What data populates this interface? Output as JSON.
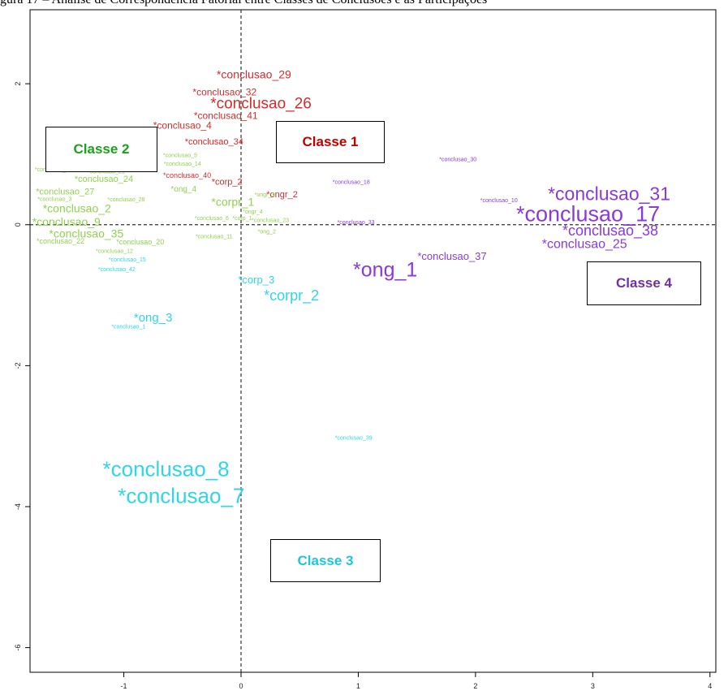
{
  "caption_fragment": "gura 17 – Análise de Correspondência Fatorial entre Classes de Conclusões e as Participações",
  "chart_data": {
    "type": "scatter",
    "title": "",
    "xlabel": "",
    "ylabel": "",
    "xlim": [
      -1.8,
      4.05
    ],
    "ylim": [
      -6.35,
      3.05
    ],
    "x_ticks": [
      -1,
      0,
      1,
      2,
      3,
      4
    ],
    "x_tick_labels": [
      "-1",
      "0",
      "1",
      "2",
      "3",
      "4"
    ],
    "y_ticks": [
      -6,
      -4,
      -2,
      0,
      2
    ],
    "y_tick_labels": [
      "-6",
      "-4",
      "-2",
      "0",
      "2"
    ],
    "reference_lines": {
      "x": 0,
      "y": 0,
      "style": "dashed"
    },
    "grid": false,
    "classes": [
      {
        "label": "Classe 1",
        "color": "#d62b2b"
      },
      {
        "label": "Classe 2",
        "color": "#8fd14f"
      },
      {
        "label": "Classe 3",
        "color": "#2fd6e8"
      },
      {
        "label": "Classe 4",
        "color": "#8a3ad6"
      }
    ],
    "points": [
      {
        "label": "*conclusao_29",
        "x": 0.11,
        "y": 2.12,
        "cls": 1,
        "size": 14
      },
      {
        "label": "*conclusao_32",
        "x": -0.14,
        "y": 1.87,
        "cls": 1,
        "size": 12
      },
      {
        "label": "*conclusao_26",
        "x": 0.17,
        "y": 1.71,
        "cls": 1,
        "size": 19
      },
      {
        "label": "*conclusao_41",
        "x": -0.13,
        "y": 1.54,
        "cls": 1,
        "size": 12
      },
      {
        "label": "*conclusao_4",
        "x": -0.5,
        "y": 1.4,
        "cls": 1,
        "size": 12
      },
      {
        "label": "*conclusao_34",
        "x": -0.23,
        "y": 1.17,
        "cls": 1,
        "size": 11
      },
      {
        "label": "*conclusao_40",
        "x": -0.46,
        "y": 0.69,
        "cls": 1,
        "size": 9
      },
      {
        "label": "*corp_2",
        "x": -0.12,
        "y": 0.6,
        "cls": 1,
        "size": 11
      },
      {
        "label": "*ongr_2",
        "x": 0.35,
        "y": 0.42,
        "cls": 1,
        "size": 11
      },
      {
        "label": "*conclusao_5",
        "x": -0.52,
        "y": 0.98,
        "cls": 2,
        "size": 7
      },
      {
        "label": "*conclusao_14",
        "x": -0.5,
        "y": 0.86,
        "cls": 2,
        "size": 7
      },
      {
        "label": "*conclusao_36",
        "x": -1.6,
        "y": 0.78,
        "cls": 2,
        "size": 7
      },
      {
        "label": "*conclusao_21",
        "x": -1.15,
        "y": 0.75,
        "cls": 2,
        "size": 7
      },
      {
        "label": "*conclusao_24",
        "x": -1.17,
        "y": 0.64,
        "cls": 2,
        "size": 11
      },
      {
        "label": "*conclusao_27",
        "x": -1.5,
        "y": 0.46,
        "cls": 2,
        "size": 11
      },
      {
        "label": "*ong_4",
        "x": -0.49,
        "y": 0.5,
        "cls": 2,
        "size": 10
      },
      {
        "label": "*conclusao_3",
        "x": -1.59,
        "y": 0.36,
        "cls": 2,
        "size": 7
      },
      {
        "label": "*conclusao_28",
        "x": -0.98,
        "y": 0.35,
        "cls": 2,
        "size": 7
      },
      {
        "label": "*corpr_1",
        "x": -0.07,
        "y": 0.31,
        "cls": 2,
        "size": 14
      },
      {
        "label": "*ongr_3",
        "x": 0.2,
        "y": 0.42,
        "cls": 2,
        "size": 7
      },
      {
        "label": "*ongr_4",
        "x": 0.1,
        "y": 0.18,
        "cls": 2,
        "size": 7
      },
      {
        "label": "*conclusao_2",
        "x": -1.4,
        "y": 0.22,
        "cls": 2,
        "size": 14
      },
      {
        "label": "*conclusao_6",
        "x": -0.25,
        "y": 0.09,
        "cls": 2,
        "size": 7
      },
      {
        "label": "*corp_1",
        "x": 0.01,
        "y": 0.09,
        "cls": 2,
        "size": 7
      },
      {
        "label": "*conclusao_23",
        "x": 0.25,
        "y": 0.06,
        "cls": 2,
        "size": 7
      },
      {
        "label": "*conclusao_9",
        "x": -1.49,
        "y": 0.03,
        "cls": 2,
        "size": 14
      },
      {
        "label": "*ong_2",
        "x": 0.22,
        "y": -0.1,
        "cls": 2,
        "size": 7
      },
      {
        "label": "*conclusao_11",
        "x": -0.23,
        "y": -0.17,
        "cls": 2,
        "size": 7
      },
      {
        "label": "*conclusao_35",
        "x": -1.32,
        "y": -0.14,
        "cls": 2,
        "size": 14
      },
      {
        "label": "*conclusao_22",
        "x": -1.54,
        "y": -0.24,
        "cls": 2,
        "size": 9
      },
      {
        "label": "*conclusao_20",
        "x": -0.86,
        "y": -0.25,
        "cls": 2,
        "size": 9
      },
      {
        "label": "*conclusao_12",
        "x": -1.08,
        "y": -0.38,
        "cls": 2,
        "size": 7
      },
      {
        "label": "*conclusao_15",
        "x": -0.97,
        "y": -0.5,
        "cls": 3,
        "size": 7
      },
      {
        "label": "*conclusao_42",
        "x": -1.06,
        "y": -0.64,
        "cls": 3,
        "size": 7
      },
      {
        "label": "*corp_3",
        "x": 0.13,
        "y": -0.79,
        "cls": 3,
        "size": 13
      },
      {
        "label": "*corpr_2",
        "x": 0.43,
        "y": -1.02,
        "cls": 3,
        "size": 18
      },
      {
        "label": "*ong_3",
        "x": -0.75,
        "y": -1.33,
        "cls": 3,
        "size": 15
      },
      {
        "label": "*conclusao_1",
        "x": -0.96,
        "y": -1.45,
        "cls": 3,
        "size": 7
      },
      {
        "label": "*conclusao_39",
        "x": 0.96,
        "y": -3.03,
        "cls": 3,
        "size": 7
      },
      {
        "label": "*conclusao_8",
        "x": -0.64,
        "y": -3.49,
        "cls": 3,
        "size": 26
      },
      {
        "label": "*conclusao_7",
        "x": -0.51,
        "y": -3.87,
        "cls": 3,
        "size": 26
      },
      {
        "label": "*conclusao_30",
        "x": 1.85,
        "y": 0.92,
        "cls": 4,
        "size": 7
      },
      {
        "label": "*conclusao_18",
        "x": 0.94,
        "y": 0.6,
        "cls": 4,
        "size": 7
      },
      {
        "label": "*conclusao_10",
        "x": 2.2,
        "y": 0.34,
        "cls": 4,
        "size": 7
      },
      {
        "label": "*conclusao_31",
        "x": 3.14,
        "y": 0.42,
        "cls": 4,
        "size": 23
      },
      {
        "label": "*conclusao_17",
        "x": 2.96,
        "y": 0.13,
        "cls": 4,
        "size": 27
      },
      {
        "label": "*conclusao_33",
        "x": 0.98,
        "y": 0.03,
        "cls": 4,
        "size": 7
      },
      {
        "label": "*conclusao_38",
        "x": 3.15,
        "y": -0.1,
        "cls": 4,
        "size": 18
      },
      {
        "label": "*conclusao_25",
        "x": 2.93,
        "y": -0.28,
        "cls": 4,
        "size": 16
      },
      {
        "label": "*conclusao_37",
        "x": 1.8,
        "y": -0.46,
        "cls": 4,
        "size": 13
      },
      {
        "label": "*ong_1",
        "x": 1.23,
        "y": -0.66,
        "cls": 4,
        "size": 25
      }
    ]
  },
  "class_boxes": [
    {
      "label": "Classe 1",
      "color": "#c00000"
    },
    {
      "label": "Classe 2",
      "color": "#1aa31a"
    },
    {
      "label": "Classe 3",
      "color": "#1fc4e0"
    },
    {
      "label": "Classe 4",
      "color": "#7030a0"
    }
  ]
}
